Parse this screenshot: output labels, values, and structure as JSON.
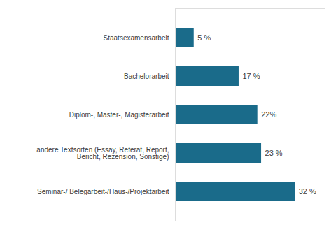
{
  "chart_data": {
    "type": "bar",
    "orientation": "horizontal",
    "categories": [
      "Seminar-/ Belegarbeit-/Haus-/Projektarbeit",
      "andere Textsorten (Essay, Referat, Report,\nBericht, Rezension, Sonstige)",
      "Diplom-, Master-, Magisterarbeit",
      "Bachelorarbeit",
      "Staatsexamensarbeit"
    ],
    "values": [
      32,
      23,
      22,
      17,
      5
    ],
    "value_labels": [
      "32 %",
      "23 %",
      "22%",
      "17 %",
      "5 %"
    ],
    "data_labels": true,
    "color": "#1a6b8a",
    "xlim": [
      0,
      40
    ],
    "xticks": [],
    "tick_labels": "y",
    "grid": false
  }
}
